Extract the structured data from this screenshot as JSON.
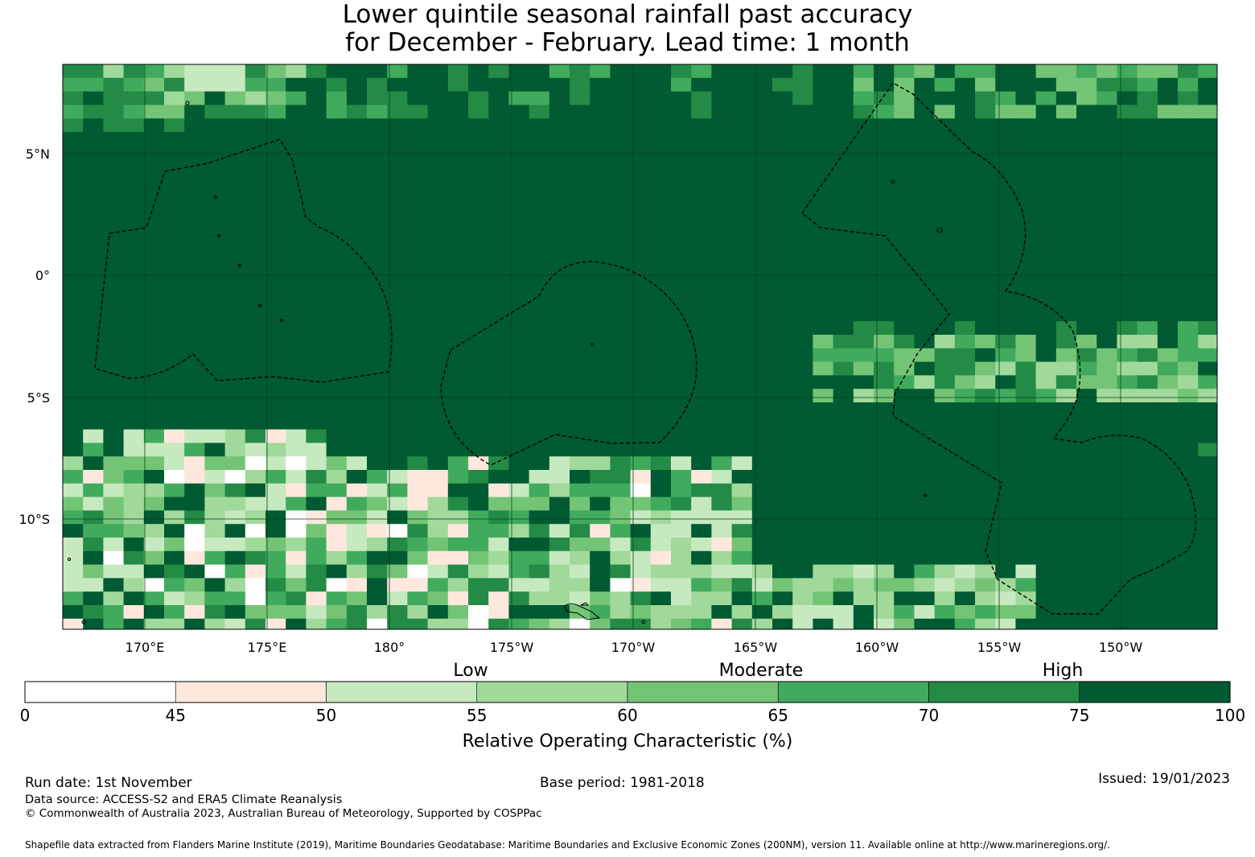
{
  "title": {
    "line1": "Lower quintile seasonal rainfall past accuracy",
    "line2": "for December - February. Lead time: 1 month"
  },
  "map": {
    "lon_ticks": [
      "170°E",
      "175°E",
      "180°",
      "175°W",
      "170°W",
      "165°W",
      "160°W",
      "155°W",
      "150°W"
    ],
    "lat_ticks": [
      "5°N",
      "0°",
      "5°S",
      "10°S"
    ],
    "colors": [
      "#ffffff",
      "#fee8de",
      "#c7e9c0",
      "#a1d99b",
      "#74c476",
      "#41ab5d",
      "#238b45",
      "#005a32"
    ]
  },
  "legend": {
    "categories": [
      "Low",
      "Moderate",
      "High"
    ],
    "bounds": [
      "0",
      "45",
      "50",
      "55",
      "60",
      "65",
      "70",
      "75",
      "100"
    ],
    "label": "Relative Operating Characteristic (%)"
  },
  "footer": {
    "run_date": "Run date: 1st November",
    "base_period": "Base period: 1981-2018",
    "issued": "Issued: 19/01/2023",
    "data_source": "Data source: ACCESS-S2 and ERA5 Climate Reanalysis",
    "copyright": "© Commonwealth of Australia 2023, Australian Bureau of Meteorology, Supported by COSPPac",
    "shapefile": "Shapefile data extracted from Flanders Marine Institute (2019), Maritime Boundaries Geodatabase: Maritime Boundaries and Exclusive Economic Zones (200NM), version 11. Available online at http://www.marineregions.org/."
  }
}
